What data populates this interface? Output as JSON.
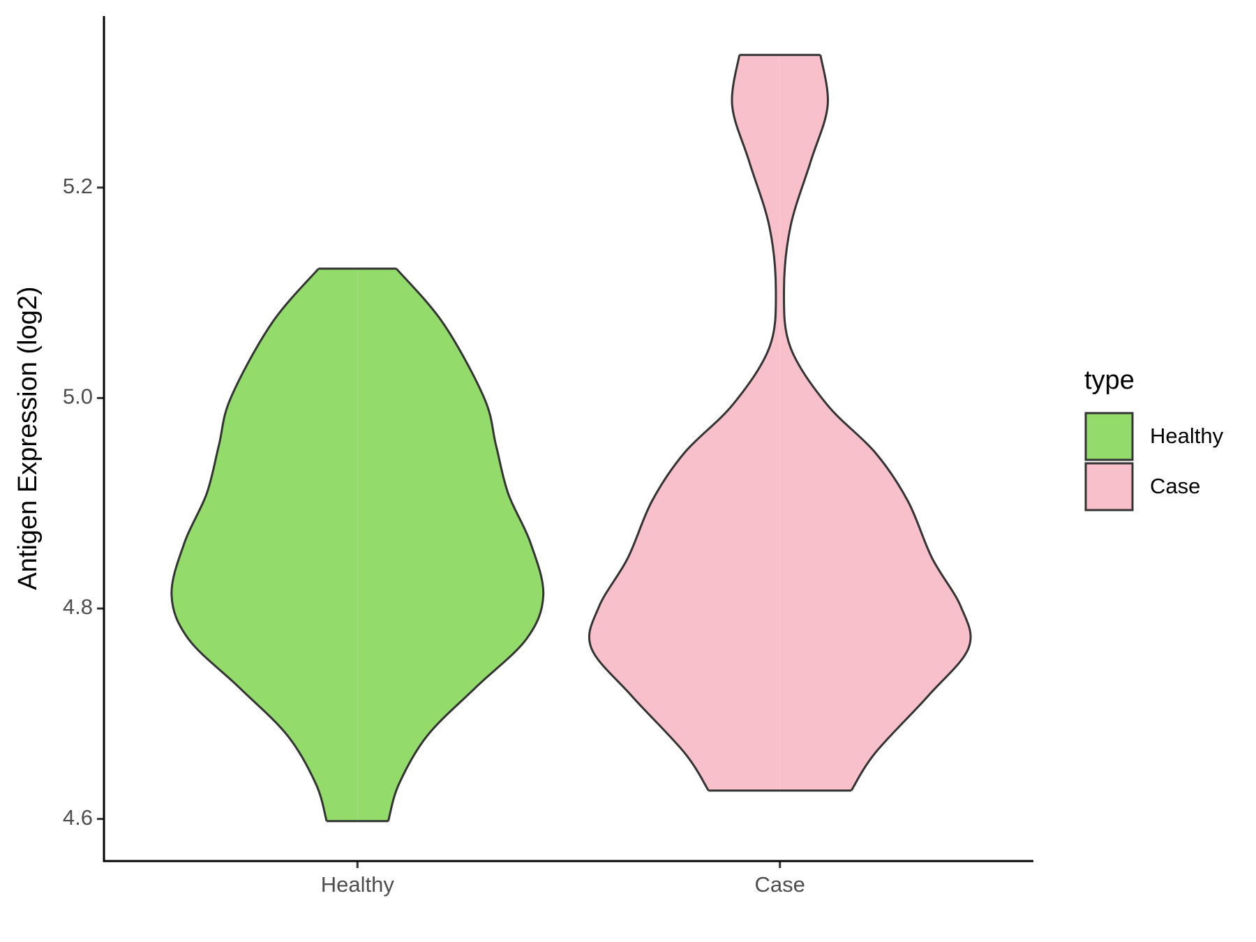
{
  "chart_data": {
    "type": "violin",
    "ylabel": "Antigen Expression (log2)",
    "categories": [
      "Healthy",
      "Case"
    ],
    "ylim": [
      4.56,
      5.363
    ],
    "yticks": [
      {
        "value": 4.6,
        "label": "4.6"
      },
      {
        "value": 4.8,
        "label": "4.8"
      },
      {
        "value": 5.0,
        "label": "5.0"
      },
      {
        "value": 5.2,
        "label": "5.2"
      }
    ],
    "legend_title": "type",
    "legend": "right",
    "series": [
      {
        "name": "Healthy",
        "color": "#93dc6b",
        "y": [
          5.123,
          5.071,
          5.0,
          4.955,
          4.909,
          4.863,
          4.813,
          4.771,
          4.725,
          4.679,
          4.633,
          4.598
        ],
        "width": [
          0.092,
          0.203,
          0.3,
          0.328,
          0.357,
          0.409,
          0.44,
          0.4,
          0.28,
          0.165,
          0.098,
          0.073
        ]
      },
      {
        "name": "Case",
        "color": "#f8c0cb",
        "y": [
          5.326,
          5.278,
          5.225,
          5.163,
          5.102,
          5.048,
          4.994,
          4.948,
          4.902,
          4.848,
          4.802,
          4.763,
          4.717,
          4.663,
          4.627
        ],
        "width": [
          0.096,
          0.113,
          0.073,
          0.025,
          0.0096,
          0.025,
          0.111,
          0.226,
          0.303,
          0.36,
          0.428,
          0.447,
          0.351,
          0.226,
          0.169
        ]
      }
    ]
  }
}
